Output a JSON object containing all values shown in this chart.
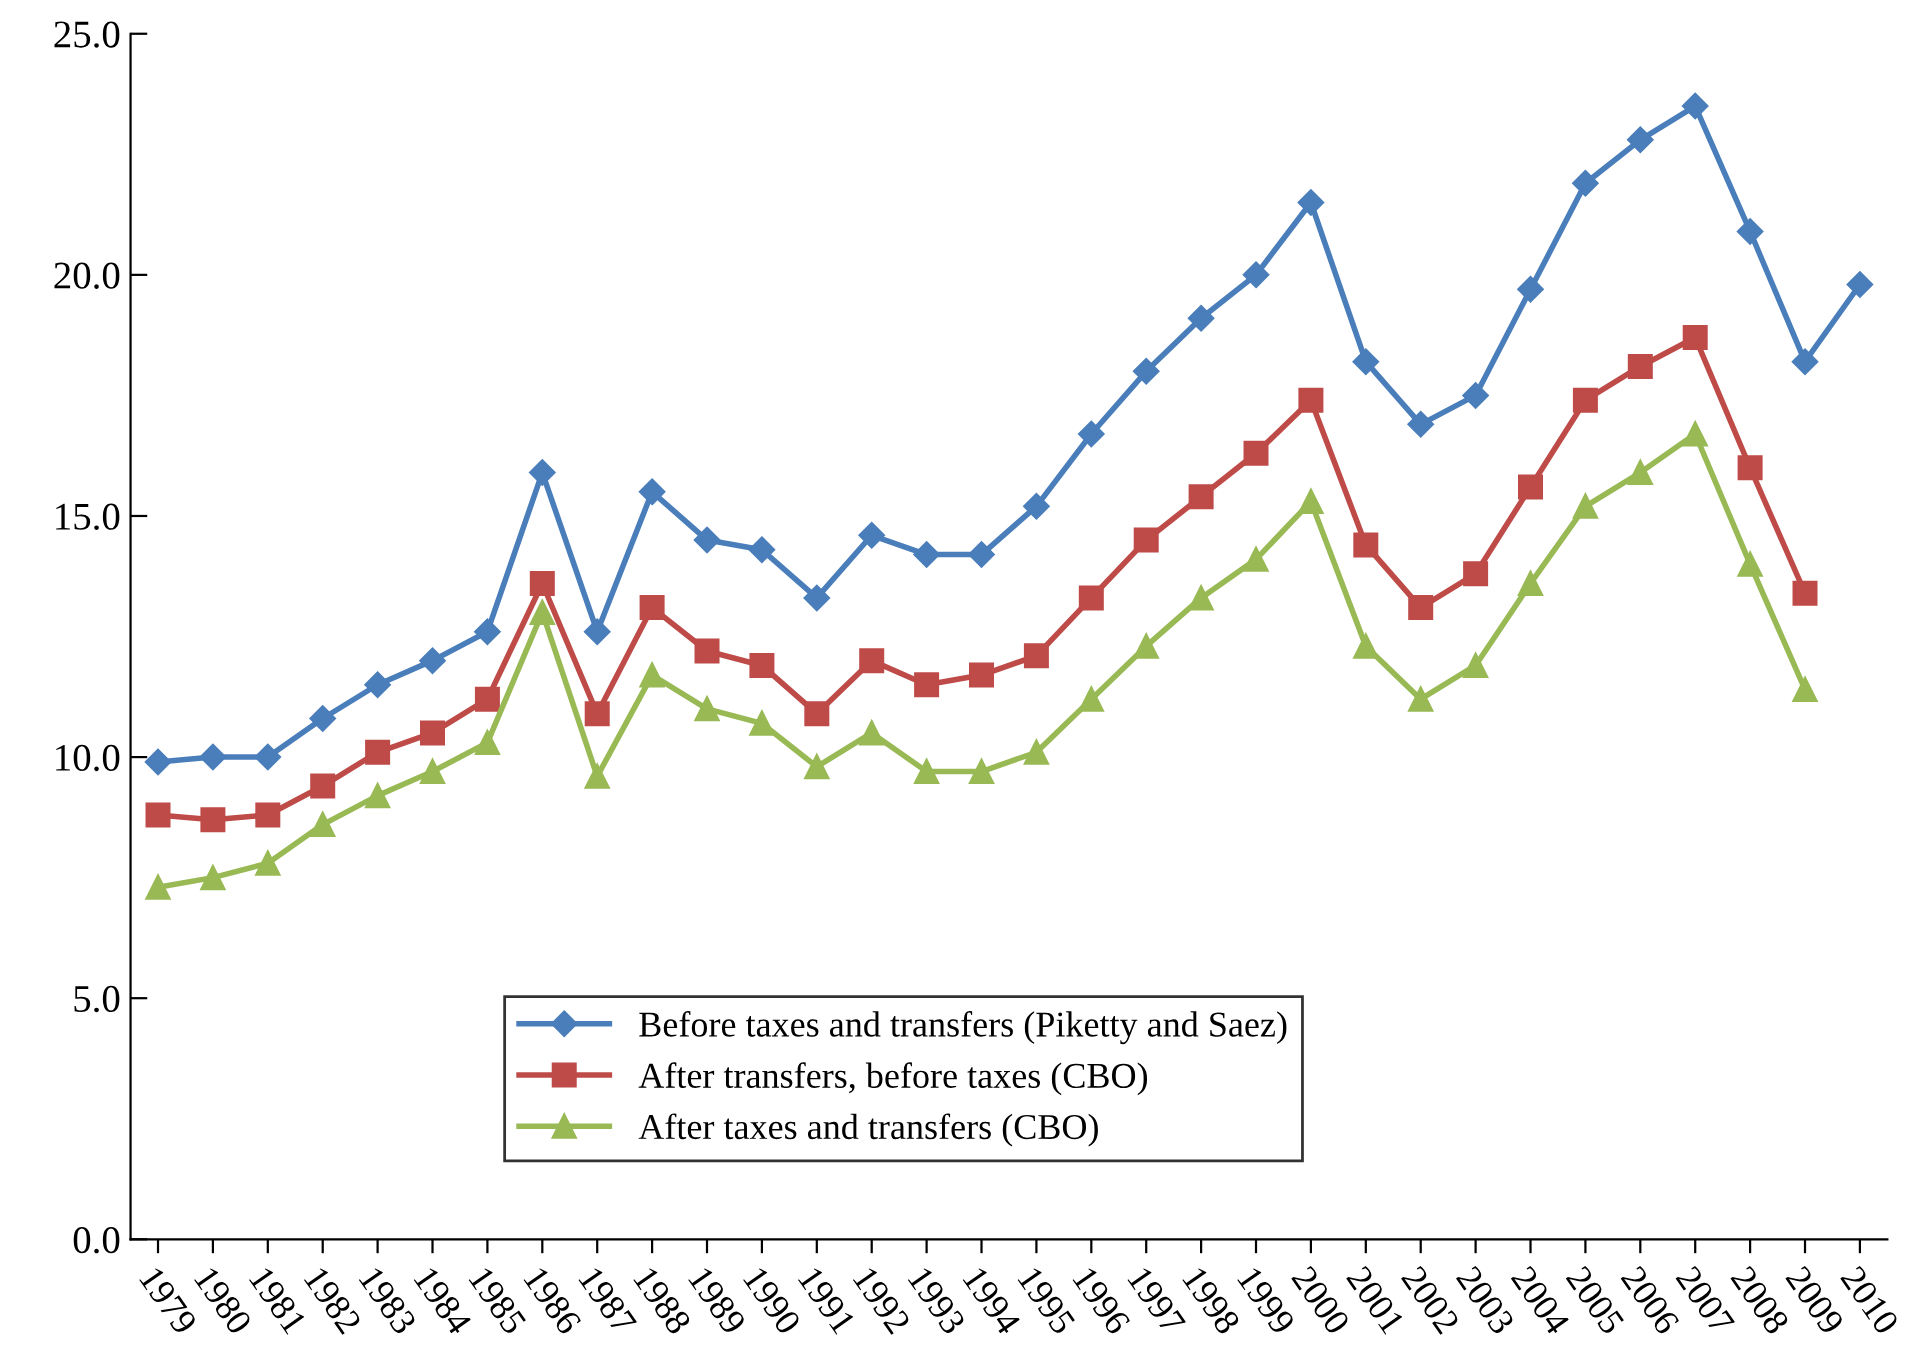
{
  "chart_data": {
    "type": "line",
    "categories": [
      "1979",
      "1980",
      "1981",
      "1982",
      "1983",
      "1984",
      "1985",
      "1986",
      "1987",
      "1988",
      "1989",
      "1990",
      "1991",
      "1992",
      "1993",
      "1994",
      "1995",
      "1996",
      "1997",
      "1998",
      "1999",
      "2000",
      "2001",
      "2002",
      "2003",
      "2004",
      "2005",
      "2006",
      "2007",
      "2008",
      "2009",
      "2010"
    ],
    "series": [
      {
        "name": "Before taxes and transfers (Piketty and Saez)",
        "color": "#4a7ebb",
        "marker": "diamond",
        "values": [
          9.9,
          10.0,
          10.0,
          10.8,
          11.5,
          12.0,
          12.6,
          15.9,
          12.6,
          15.5,
          14.5,
          14.3,
          13.3,
          14.6,
          14.2,
          14.2,
          15.2,
          16.7,
          18.0,
          19.1,
          20.0,
          21.5,
          18.2,
          16.9,
          17.5,
          19.7,
          21.9,
          22.8,
          23.5,
          20.9,
          18.2,
          19.8
        ]
      },
      {
        "name": "After transfers, before taxes (CBO)",
        "color": "#be4b48",
        "marker": "square",
        "values": [
          8.8,
          8.7,
          8.8,
          9.4,
          10.1,
          10.5,
          11.2,
          13.6,
          10.9,
          13.1,
          12.2,
          11.9,
          10.9,
          12.0,
          11.5,
          11.7,
          12.1,
          13.3,
          14.5,
          15.4,
          16.3,
          17.4,
          14.4,
          13.1,
          13.8,
          15.6,
          17.4,
          18.1,
          18.7,
          16.0,
          13.4,
          null
        ]
      },
      {
        "name": "After taxes and transfers (CBO)",
        "color": "#98b954",
        "marker": "triangle",
        "values": [
          7.3,
          7.5,
          7.8,
          8.6,
          9.2,
          9.7,
          10.3,
          13.0,
          9.6,
          11.7,
          11.0,
          10.7,
          9.8,
          10.5,
          9.7,
          9.7,
          10.1,
          11.2,
          12.3,
          13.3,
          14.1,
          15.3,
          12.3,
          11.2,
          11.9,
          13.6,
          15.2,
          15.9,
          16.7,
          14.0,
          11.4,
          null
        ]
      }
    ],
    "ylim": [
      0,
      25
    ],
    "yticks": [
      {
        "value": 0,
        "label": "0.0"
      },
      {
        "value": 5,
        "label": "5.0"
      },
      {
        "value": 10,
        "label": "10.0"
      },
      {
        "value": 15,
        "label": "15.0"
      },
      {
        "value": 20,
        "label": "20.0"
      },
      {
        "value": 25,
        "label": "25.0"
      }
    ],
    "grid": false,
    "legend": "bottom",
    "line_style": "solid"
  }
}
